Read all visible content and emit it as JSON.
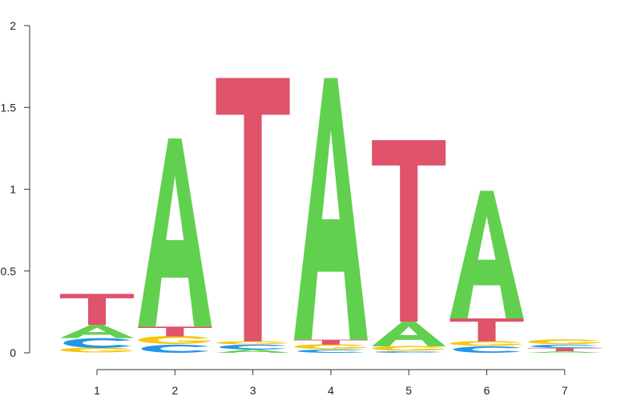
{
  "chart_data": {
    "type": "sequence-logo",
    "title": "",
    "xlabel": "",
    "ylabel": "",
    "ylim": [
      0,
      2
    ],
    "yticks": [
      {
        "value": 0,
        "label": "0"
      },
      {
        "value": 0.5,
        "label": "0.5"
      },
      {
        "value": 1,
        "label": "1"
      },
      {
        "value": 1.5,
        "label": "1.5"
      },
      {
        "value": 2,
        "label": "2"
      }
    ],
    "colors": {
      "A": "#61D04F",
      "C": "#2297E6",
      "G": "#F5C710",
      "T": "#DF536B"
    },
    "positions": [
      {
        "label": "1",
        "letters": [
          {
            "base": "G",
            "height": 0.03
          },
          {
            "base": "C",
            "height": 0.06
          },
          {
            "base": "A",
            "height": 0.08
          },
          {
            "base": "T",
            "height": 0.19
          }
        ]
      },
      {
        "label": "2",
        "letters": [
          {
            "base": "C",
            "height": 0.05
          },
          {
            "base": "G",
            "height": 0.05
          },
          {
            "base": "T",
            "height": 0.06
          },
          {
            "base": "A",
            "height": 1.15
          }
        ]
      },
      {
        "label": "3",
        "letters": [
          {
            "base": "A",
            "height": 0.02
          },
          {
            "base": "C",
            "height": 0.03
          },
          {
            "base": "G",
            "height": 0.02
          },
          {
            "base": "T",
            "height": 1.61
          }
        ]
      },
      {
        "label": "4",
        "letters": [
          {
            "base": "C",
            "height": 0.02
          },
          {
            "base": "G",
            "height": 0.03
          },
          {
            "base": "T",
            "height": 0.03
          },
          {
            "base": "A",
            "height": 1.6
          }
        ]
      },
      {
        "label": "5",
        "letters": [
          {
            "base": "C",
            "height": 0.01
          },
          {
            "base": "G",
            "height": 0.03
          },
          {
            "base": "A",
            "height": 0.15
          },
          {
            "base": "T",
            "height": 1.11
          }
        ]
      },
      {
        "label": "6",
        "letters": [
          {
            "base": "C",
            "height": 0.04
          },
          {
            "base": "G",
            "height": 0.03
          },
          {
            "base": "T",
            "height": 0.14
          },
          {
            "base": "A",
            "height": 0.78
          }
        ]
      },
      {
        "label": "7",
        "letters": [
          {
            "base": "A",
            "height": 0.01
          },
          {
            "base": "T",
            "height": 0.02
          },
          {
            "base": "C",
            "height": 0.02
          },
          {
            "base": "G",
            "height": 0.03
          }
        ]
      }
    ]
  }
}
